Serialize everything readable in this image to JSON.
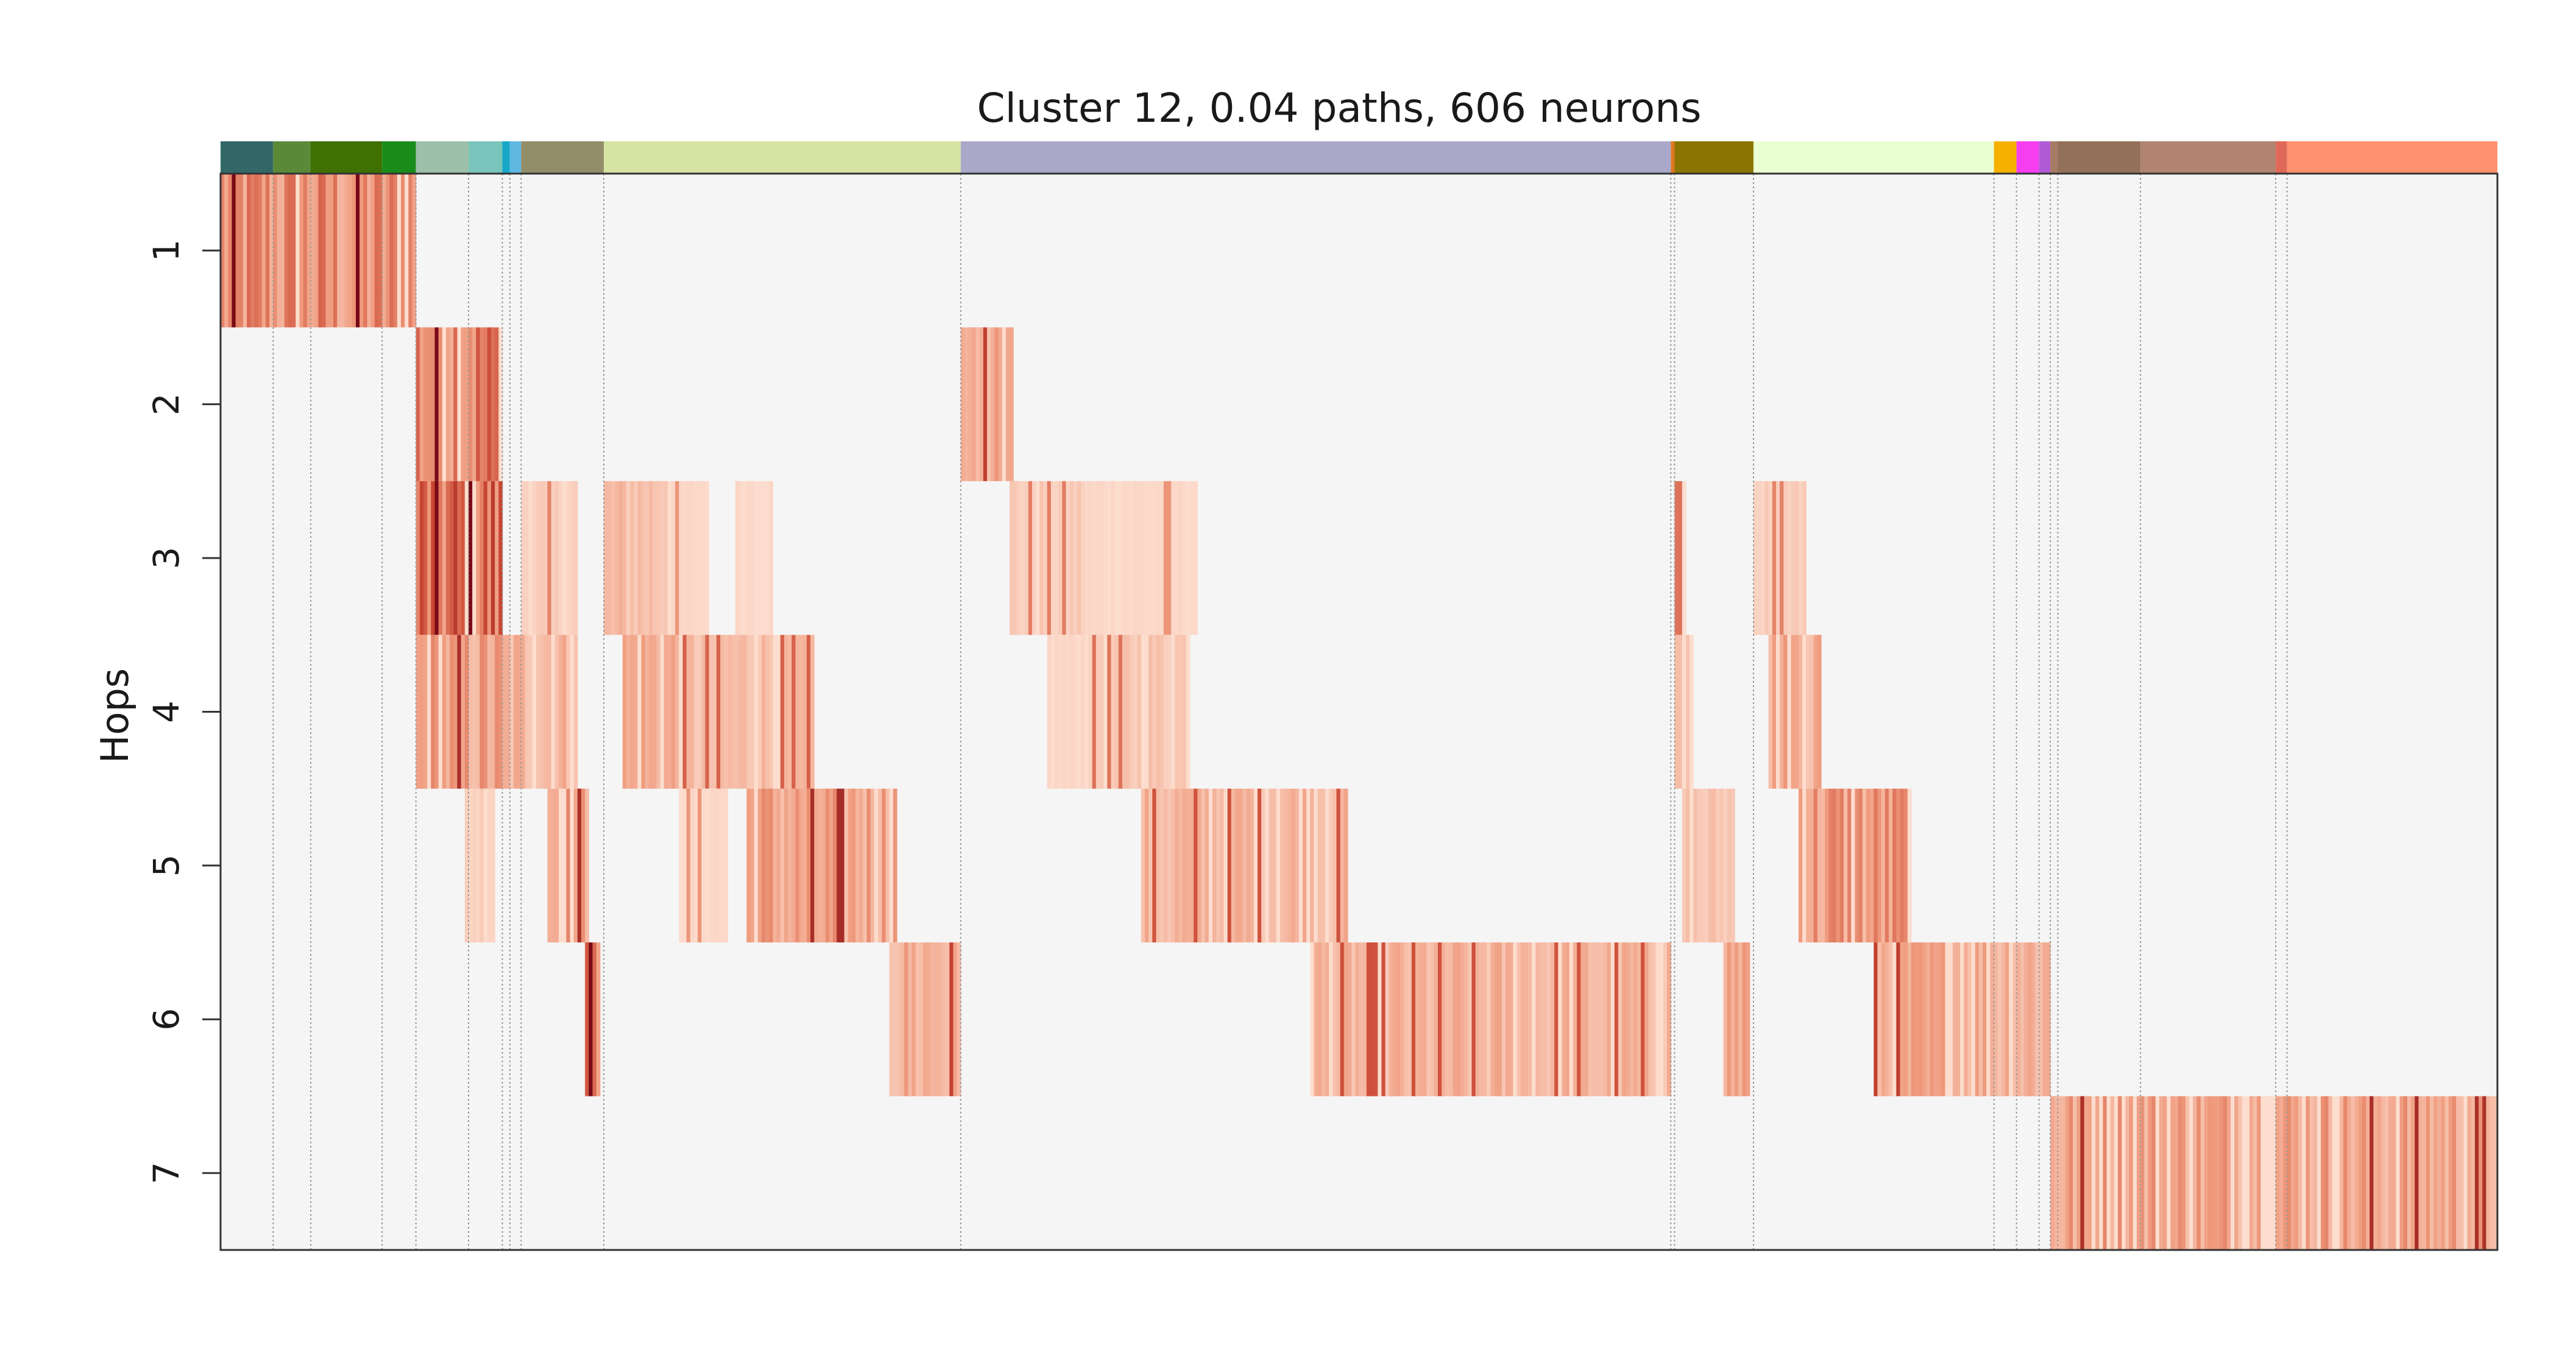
{
  "chart_data": {
    "type": "heatmap",
    "title": "Cluster 12, 0.04 paths, 606 neurons",
    "xlabel": "",
    "ylabel": "Hops",
    "y_categories": [
      "1",
      "2",
      "3",
      "4",
      "5",
      "6",
      "7"
    ],
    "x_range": [
      0,
      606
    ],
    "neuron_count": 606,
    "grid": false,
    "colormap": {
      "background": "#f5f5f5",
      "low": "#fde0d2",
      "mid": "#ef9a7d",
      "high": "#cb4934",
      "max": "#7a0a17"
    },
    "group_bar": [
      {
        "start": 0,
        "end": 14,
        "color": "#346868"
      },
      {
        "start": 14,
        "end": 24,
        "color": "#5a8a38"
      },
      {
        "start": 24,
        "end": 43,
        "color": "#3f7000"
      },
      {
        "start": 43,
        "end": 52,
        "color": "#1a8c1a"
      },
      {
        "start": 52,
        "end": 66,
        "color": "#9cc0a9"
      },
      {
        "start": 66,
        "end": 75,
        "color": "#79c5bc"
      },
      {
        "start": 75,
        "end": 77,
        "color": "#17a8c8"
      },
      {
        "start": 77,
        "end": 80,
        "color": "#5fb8e0"
      },
      {
        "start": 80,
        "end": 102,
        "color": "#938e6a"
      },
      {
        "start": 102,
        "end": 197,
        "color": "#d6e3a2"
      },
      {
        "start": 197,
        "end": 386,
        "color": "#aaa8c9"
      },
      {
        "start": 386,
        "end": 387,
        "color": "#e07820"
      },
      {
        "start": 387,
        "end": 408,
        "color": "#8b7500"
      },
      {
        "start": 408,
        "end": 472,
        "color": "#eaffd2"
      },
      {
        "start": 472,
        "end": 478,
        "color": "#f5b000"
      },
      {
        "start": 478,
        "end": 484,
        "color": "#f53ef0"
      },
      {
        "start": 484,
        "end": 487,
        "color": "#b05ad5"
      },
      {
        "start": 487,
        "end": 489,
        "color": "#a67c64"
      },
      {
        "start": 489,
        "end": 511,
        "color": "#937058"
      },
      {
        "start": 511,
        "end": 547,
        "color": "#b08470"
      },
      {
        "start": 547,
        "end": 550,
        "color": "#e06858"
      },
      {
        "start": 550,
        "end": 606,
        "color": "#ff9070"
      }
    ],
    "group_boundaries": [
      14,
      24,
      43,
      52,
      66,
      75,
      77,
      80,
      102,
      197,
      386,
      387,
      408,
      472,
      478,
      484,
      487,
      489,
      511,
      547,
      550
    ],
    "blocks": [
      {
        "hop": 1,
        "start": 0,
        "end": 52,
        "level": 0.45
      },
      {
        "hop": 2,
        "start": 52,
        "end": 75,
        "level": 0.55
      },
      {
        "hop": 2,
        "start": 197,
        "end": 211,
        "level": 0.3
      },
      {
        "hop": 3,
        "start": 52,
        "end": 75,
        "level": 0.6
      },
      {
        "hop": 3,
        "start": 80,
        "end": 95,
        "level": 0.1
      },
      {
        "hop": 3,
        "start": 102,
        "end": 120,
        "level": 0.2
      },
      {
        "hop": 3,
        "start": 120,
        "end": 130,
        "level": 0.05
      },
      {
        "hop": 3,
        "start": 137,
        "end": 147,
        "level": 0.05
      },
      {
        "hop": 3,
        "start": 210,
        "end": 230,
        "level": 0.12
      },
      {
        "hop": 3,
        "start": 230,
        "end": 260,
        "level": 0.05
      },
      {
        "hop": 3,
        "start": 387,
        "end": 390,
        "level": 0.15
      },
      {
        "hop": 3,
        "start": 408,
        "end": 422,
        "level": 0.1
      },
      {
        "hop": 4,
        "start": 52,
        "end": 75,
        "level": 0.35
      },
      {
        "hop": 4,
        "start": 75,
        "end": 95,
        "level": 0.25
      },
      {
        "hop": 4,
        "start": 107,
        "end": 122,
        "level": 0.3
      },
      {
        "hop": 4,
        "start": 122,
        "end": 158,
        "level": 0.2
      },
      {
        "hop": 4,
        "start": 220,
        "end": 230,
        "level": 0.05
      },
      {
        "hop": 4,
        "start": 230,
        "end": 258,
        "level": 0.15
      },
      {
        "hop": 4,
        "start": 387,
        "end": 392,
        "level": 0.3
      },
      {
        "hop": 4,
        "start": 412,
        "end": 426,
        "level": 0.3
      },
      {
        "hop": 5,
        "start": 65,
        "end": 73,
        "level": 0.1
      },
      {
        "hop": 5,
        "start": 87,
        "end": 98,
        "level": 0.35
      },
      {
        "hop": 5,
        "start": 122,
        "end": 135,
        "level": 0.05
      },
      {
        "hop": 5,
        "start": 140,
        "end": 180,
        "level": 0.35
      },
      {
        "hop": 5,
        "start": 245,
        "end": 300,
        "level": 0.25
      },
      {
        "hop": 5,
        "start": 389,
        "end": 403,
        "level": 0.15
      },
      {
        "hop": 5,
        "start": 420,
        "end": 450,
        "level": 0.4
      },
      {
        "hop": 6,
        "start": 97,
        "end": 101,
        "level": 0.5
      },
      {
        "hop": 6,
        "start": 178,
        "end": 197,
        "level": 0.3
      },
      {
        "hop": 6,
        "start": 290,
        "end": 386,
        "level": 0.25
      },
      {
        "hop": 6,
        "start": 400,
        "end": 407,
        "level": 0.35
      },
      {
        "hop": 6,
        "start": 440,
        "end": 487,
        "level": 0.3
      },
      {
        "hop": 7,
        "start": 487,
        "end": 606,
        "level": 0.35
      }
    ]
  }
}
